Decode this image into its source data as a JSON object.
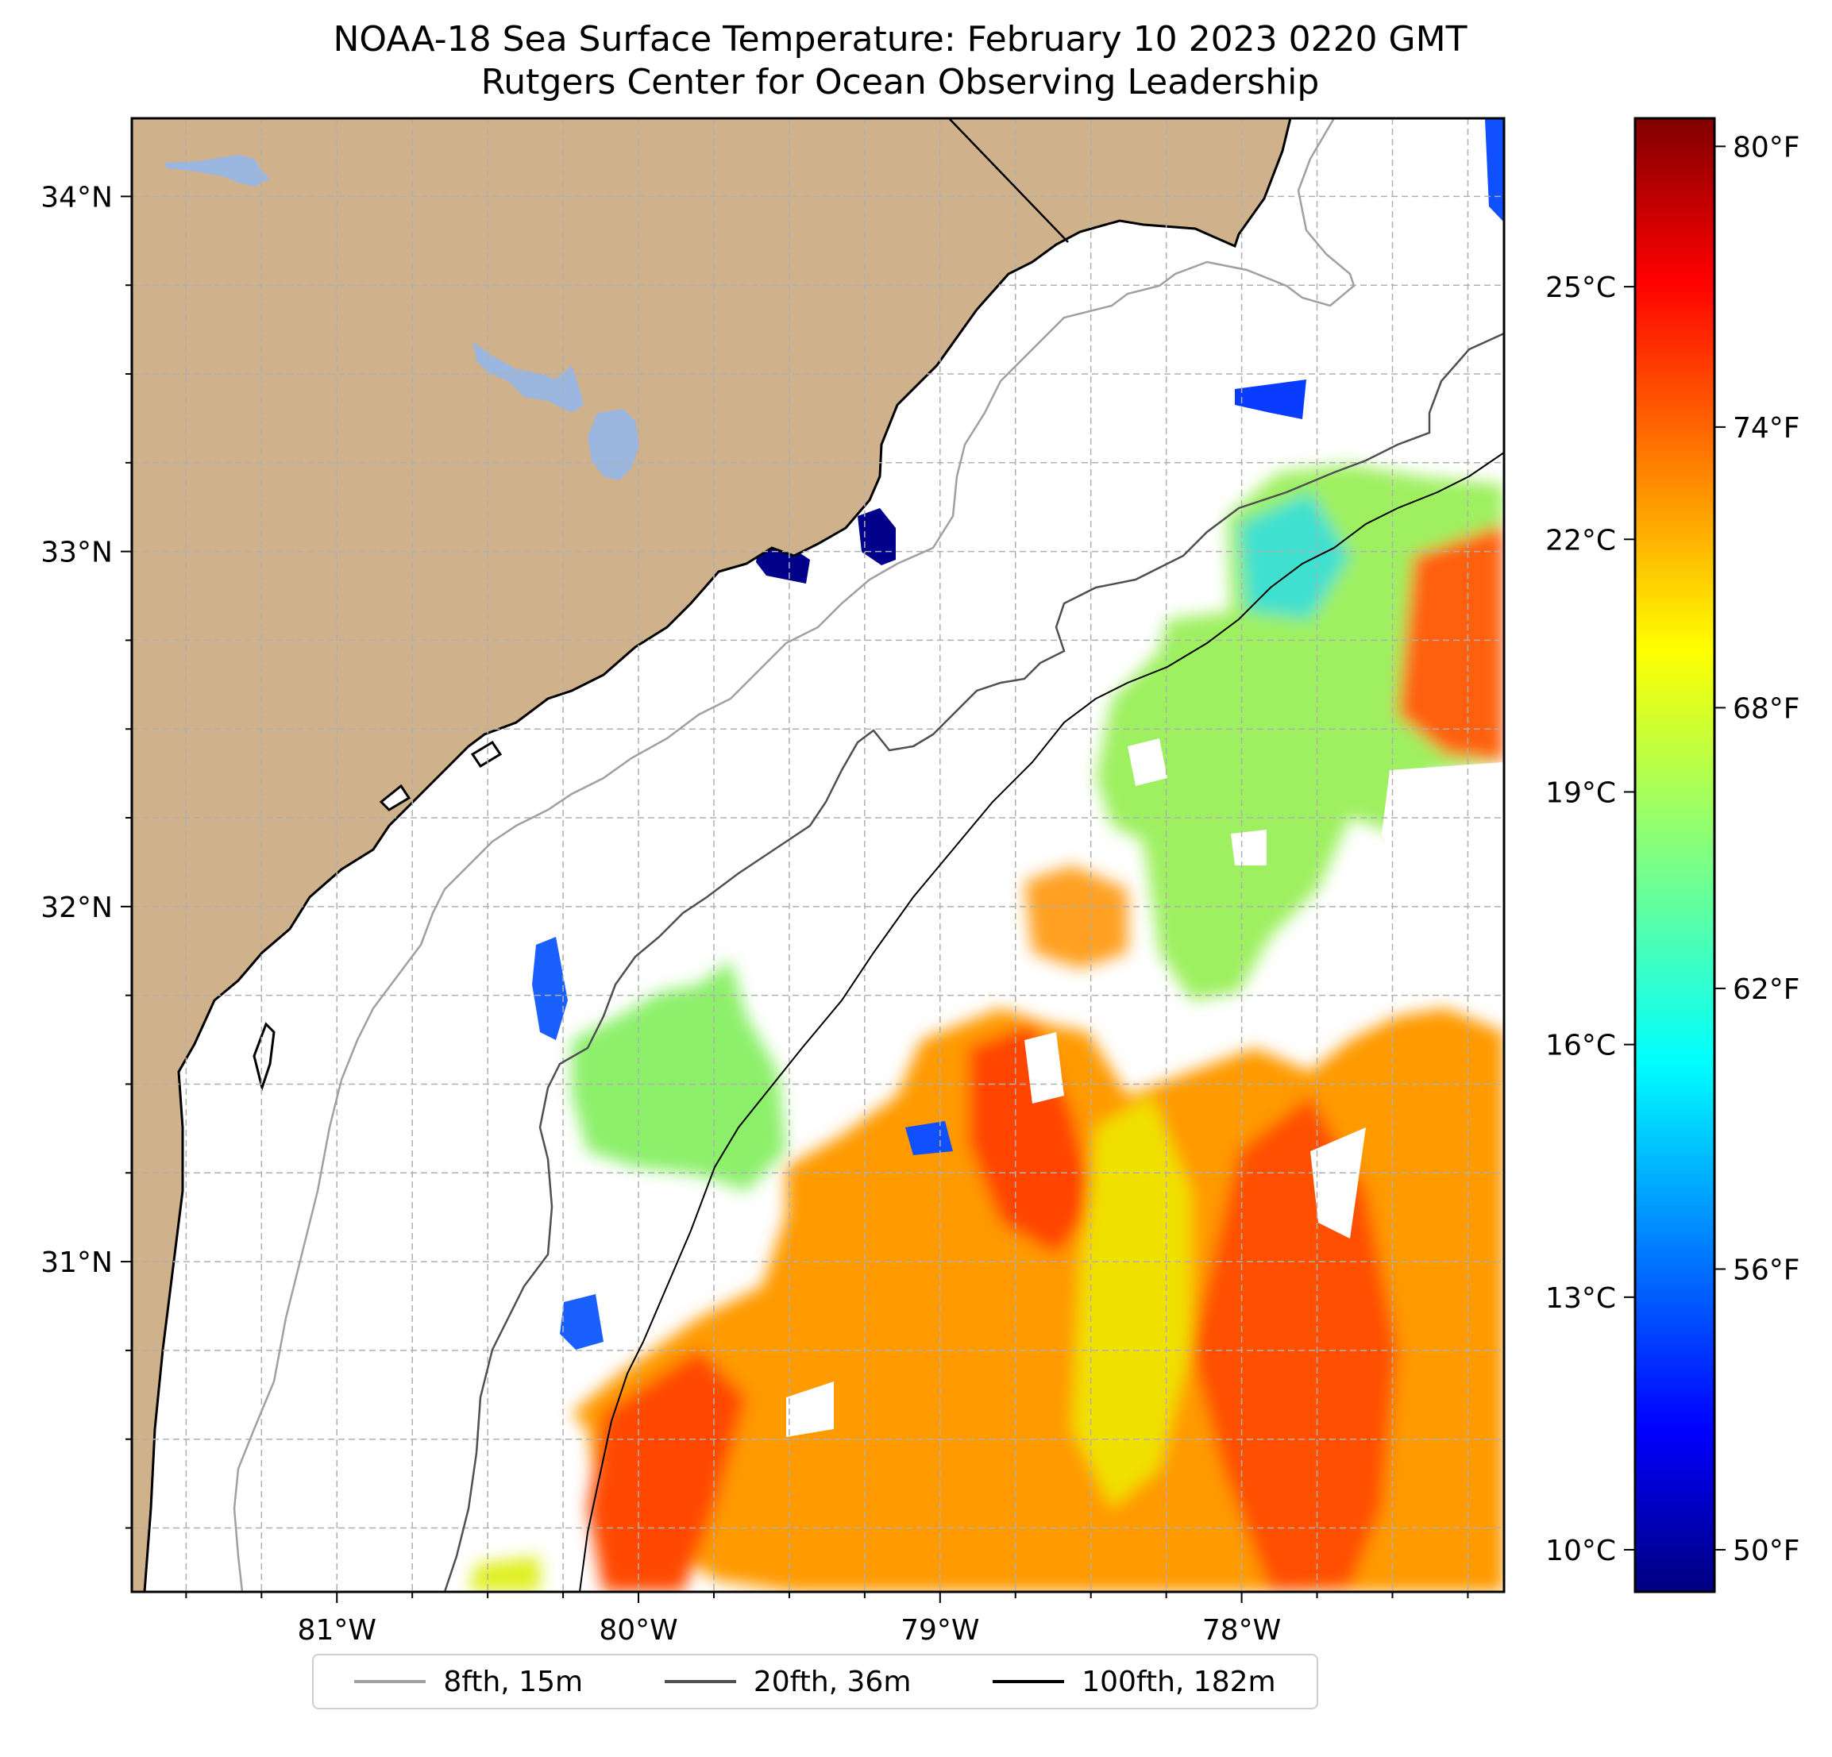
{
  "title": "NOAA-18 Sea Surface Temperature: February 10 2023 0220 GMT",
  "subtitle": "Rutgers Center for Ocean Observing Leadership",
  "map": {
    "lon_range": [
      -81.68,
      -77.13
    ],
    "lat_range": [
      30.07,
      34.22
    ],
    "lon_ticks": [
      {
        "value": -81,
        "label": "81°W"
      },
      {
        "value": -80,
        "label": "80°W"
      },
      {
        "value": -79,
        "label": "79°W"
      },
      {
        "value": -78,
        "label": "78°W"
      }
    ],
    "lat_ticks": [
      {
        "value": 34,
        "label": "34°N"
      },
      {
        "value": 33,
        "label": "33°N"
      },
      {
        "value": 32,
        "label": "32°N"
      },
      {
        "value": 31,
        "label": "31°N"
      }
    ],
    "gridlines": "dashed, every 0.25°",
    "land_color": "#cfb28b",
    "lake_color": "#9bb7e0",
    "no_data_color": "#ffffff"
  },
  "colorbar": {
    "colormap": "jet",
    "range_c": [
      9.5,
      27.0
    ],
    "celsius_ticks": [
      {
        "value": 25,
        "label": "25°C"
      },
      {
        "value": 22,
        "label": "22°C"
      },
      {
        "value": 19,
        "label": "19°C"
      },
      {
        "value": 16,
        "label": "16°C"
      },
      {
        "value": 13,
        "label": "13°C"
      },
      {
        "value": 10,
        "label": "10°C"
      }
    ],
    "fahrenheit_ticks": [
      {
        "value": 80,
        "label": "80°F"
      },
      {
        "value": 74,
        "label": "74°F"
      },
      {
        "value": 68,
        "label": "68°F"
      },
      {
        "value": 62,
        "label": "62°F"
      },
      {
        "value": 56,
        "label": "56°F"
      },
      {
        "value": 50,
        "label": "50°F"
      }
    ]
  },
  "legend": {
    "location": "bottom-center",
    "items": [
      {
        "label": "8fth, 15m",
        "color": "#a0a0a0"
      },
      {
        "label": "20fth, 36m",
        "color": "#505050"
      },
      {
        "label": "100fth, 182m",
        "color": "#000000"
      }
    ]
  }
}
